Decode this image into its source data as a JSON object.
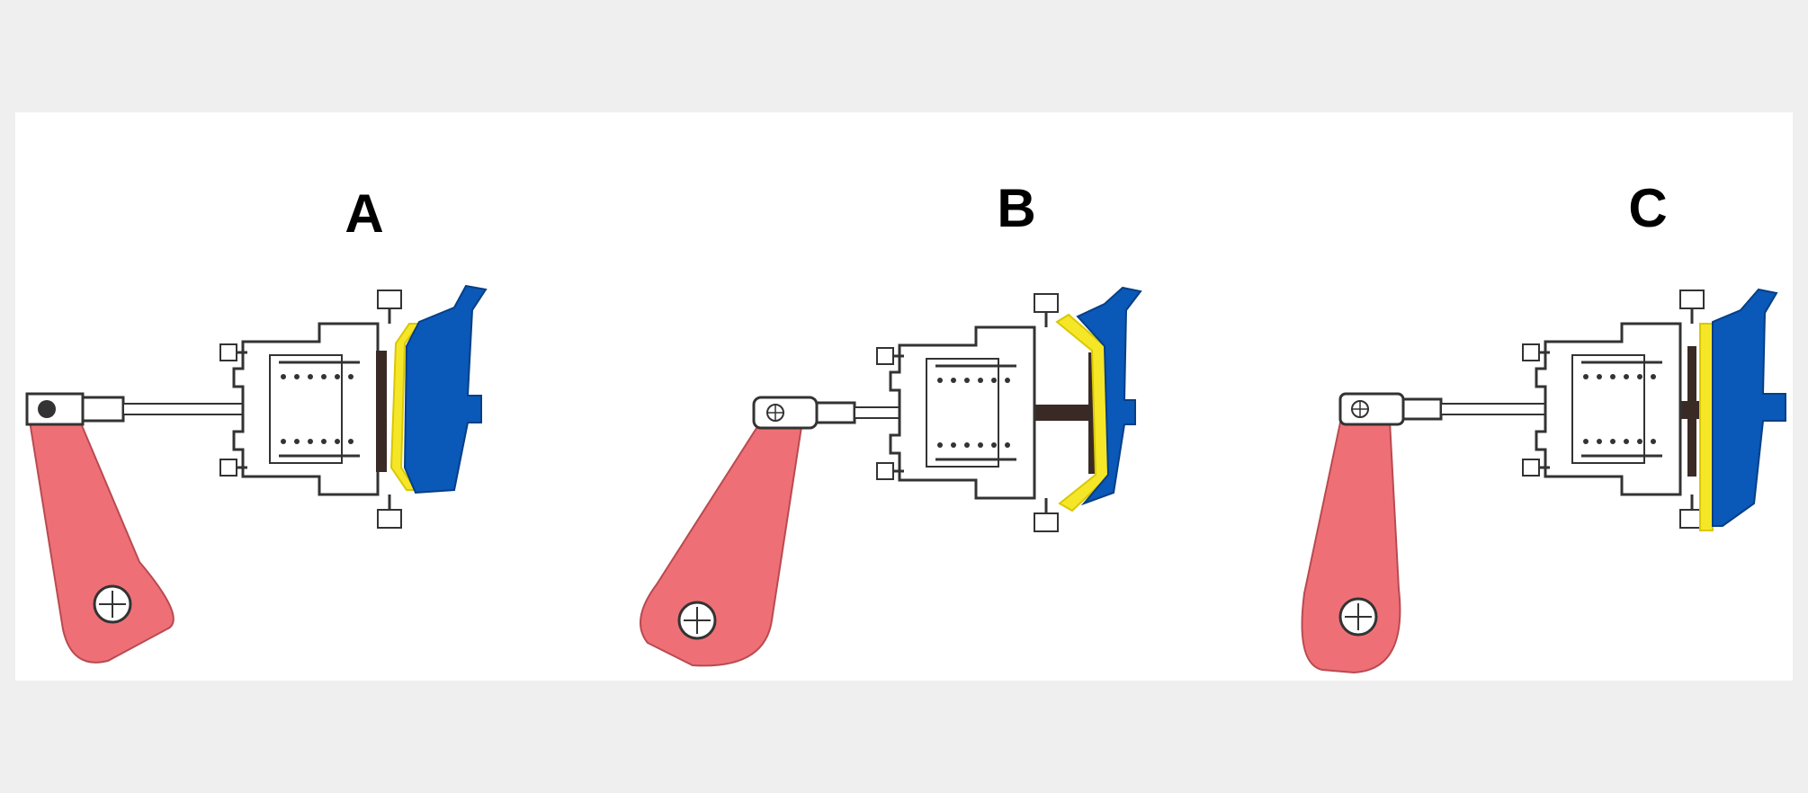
{
  "panels": [
    {
      "label": "A"
    },
    {
      "label": "B"
    },
    {
      "label": "C"
    }
  ],
  "colors": {
    "background": "#efefef",
    "canvas": "#ffffff",
    "lever": "#ee7076",
    "chamber": "#0a58b8",
    "diaphragm": "#f5e628",
    "outline": "#333333",
    "pushrod": "#3a2a25"
  },
  "icons": [
    "slack-adjuster-lever",
    "brake-chamber",
    "diaphragm",
    "pushrod",
    "return-spring"
  ]
}
